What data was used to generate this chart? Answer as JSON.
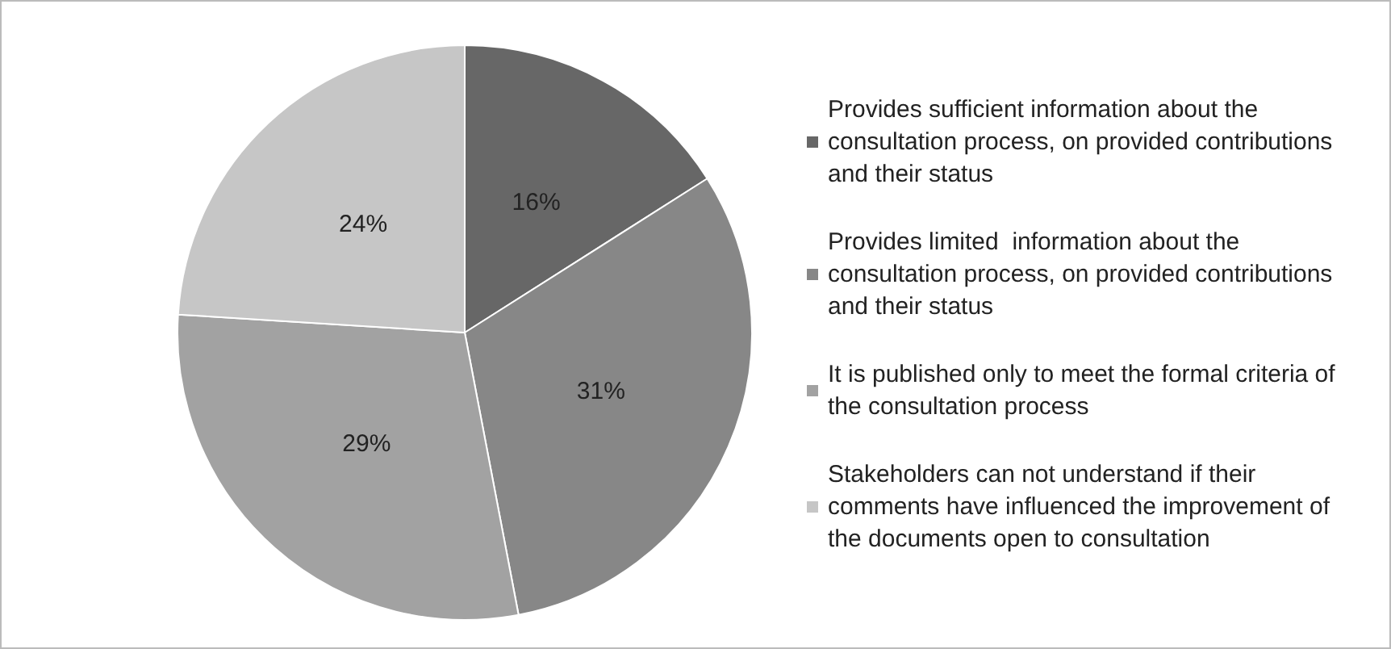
{
  "chart_data": {
    "type": "pie",
    "categories": [
      "Provides sufficient information about the consultation process, on provided contributions and their status",
      "Provides limited  information about the consultation process, on provided contributions and their status",
      "It is published only to meet the formal criteria of the consultation process",
      "Stakeholders can not understand if their comments have influenced the improvement of the documents open to consultation"
    ],
    "values": [
      16,
      31,
      29,
      24
    ],
    "value_labels": [
      "16%",
      "31%",
      "29%",
      "24%"
    ],
    "colors": [
      "#676767",
      "#878787",
      "#a2a2a2",
      "#c6c6c6"
    ],
    "legend": "right"
  }
}
